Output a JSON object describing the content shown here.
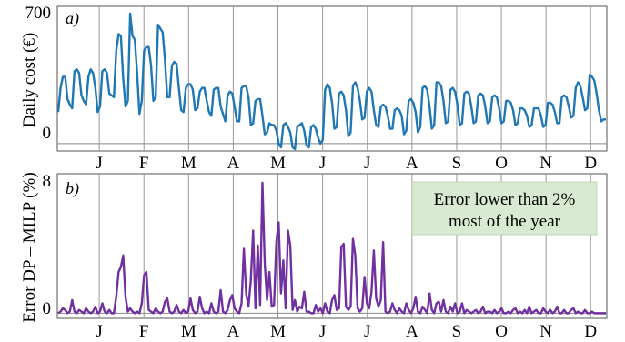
{
  "chart_data": [
    {
      "type": "line",
      "panel_tag": "a)",
      "ylabel": "Daily cost (€)",
      "xlabel": "",
      "ylim": [
        -30,
        700
      ],
      "y_ticks": [
        0,
        700
      ],
      "months": [
        "J",
        "F",
        "M",
        "A",
        "M",
        "J",
        "J",
        "A",
        "S",
        "O",
        "N",
        "D"
      ],
      "grid": "vertical month lines",
      "line_color": "#1f77b4",
      "series": [
        {
          "values": [
            170,
            300,
            360,
            360,
            240,
            210,
            190,
            390,
            400,
            380,
            260,
            230,
            210,
            360,
            400,
            380,
            300,
            170,
            200,
            390,
            400,
            380,
            270,
            260,
            250,
            500,
            590,
            580,
            350,
            200,
            230,
            700,
            580,
            560,
            380,
            160,
            230,
            500,
            520,
            520,
            420,
            230,
            250,
            640,
            620,
            600,
            450,
            250,
            250,
            420,
            440,
            430,
            300,
            180,
            170,
            300,
            320,
            320,
            290,
            180,
            190,
            280,
            300,
            300,
            230,
            170,
            150,
            290,
            300,
            300,
            200,
            160,
            120,
            260,
            280,
            270,
            200,
            120,
            120,
            300,
            310,
            310,
            250,
            100,
            110,
            230,
            240,
            240,
            150,
            50,
            60,
            110,
            100,
            100,
            70,
            0,
            -20,
            100,
            110,
            90,
            60,
            -20,
            -30,
            90,
            100,
            110,
            70,
            -10,
            -20,
            90,
            100,
            80,
            30,
            0,
            20,
            290,
            320,
            300,
            220,
            80,
            90,
            270,
            280,
            260,
            180,
            40,
            60,
            310,
            330,
            300,
            230,
            130,
            140,
            280,
            300,
            280,
            180,
            100,
            90,
            200,
            210,
            200,
            150,
            80,
            80,
            180,
            190,
            180,
            150,
            50,
            70,
            230,
            240,
            220,
            170,
            60,
            90,
            300,
            310,
            290,
            200,
            80,
            100,
            330,
            330,
            310,
            230,
            110,
            120,
            290,
            300,
            280,
            210,
            100,
            110,
            270,
            280,
            270,
            200,
            110,
            120,
            260,
            270,
            260,
            200,
            110,
            120,
            250,
            260,
            250,
            190,
            110,
            120,
            230,
            230,
            220,
            180,
            100,
            110,
            190,
            190,
            180,
            150,
            90,
            100,
            190,
            190,
            190,
            150,
            90,
            100,
            220,
            220,
            210,
            170,
            110,
            110,
            250,
            260,
            250,
            200,
            140,
            150,
            300,
            330,
            310,
            250,
            180,
            190,
            370,
            360,
            340,
            270,
            180,
            120,
            130,
            130
          ]
        }
      ]
    },
    {
      "type": "line",
      "panel_tag": "b)",
      "ylabel": "Error DP – MILP (%)",
      "xlabel": "",
      "ylim": [
        -0.2,
        8
      ],
      "y_ticks": [
        0,
        8
      ],
      "months": [
        "J",
        "F",
        "M",
        "A",
        "M",
        "J",
        "J",
        "A",
        "S",
        "O",
        "N",
        "D"
      ],
      "grid": "vertical month lines",
      "line_color": "#7030a0",
      "annotation": {
        "lines": [
          "Error lower than 2%",
          "most of the year"
        ],
        "background": "#d9ead3",
        "position": "top-right"
      },
      "series": [
        {
          "values": [
            0.0,
            0.1,
            0.3,
            0.2,
            0.0,
            0.1,
            0.8,
            0.1,
            0.0,
            0.2,
            0.1,
            0.0,
            0.3,
            0.1,
            0.0,
            0.1,
            0.4,
            0.0,
            0.1,
            0.6,
            0.1,
            0.0,
            0.2,
            0.0,
            0.0,
            1.0,
            2.5,
            2.8,
            3.5,
            1.0,
            0.1,
            0.3,
            0.1,
            0.0,
            0.1,
            0.0,
            0.6,
            2.3,
            2.5,
            0.2,
            0.1,
            0.0,
            0.3,
            0.1,
            0.0,
            0.1,
            0.7,
            0.9,
            0.1,
            0.0,
            0.1,
            0.5,
            0.1,
            0.0,
            0.2,
            0.0,
            0.1,
            0.9,
            0.2,
            0.0,
            0.1,
            1.0,
            0.3,
            0.0,
            0.1,
            0.0,
            0.6,
            0.1,
            0.0,
            0.1,
            1.4,
            0.1,
            0.0,
            0.2,
            0.8,
            1.1,
            0.3,
            0.1,
            0.0,
            0.6,
            3.9,
            1.2,
            0.4,
            2.0,
            5.0,
            0.3,
            4.1,
            0.5,
            7.9,
            3.0,
            0.8,
            2.5,
            0.4,
            0.5,
            4.3,
            5.5,
            1.2,
            3.2,
            0.3,
            5.0,
            4.1,
            0.2,
            0.8,
            0.1,
            0.4,
            0.3,
            1.3,
            0.1,
            0.1,
            0.0,
            0.0,
            0.5,
            0.1,
            0.3,
            0.0,
            0.6,
            0.1,
            0.0,
            0.8,
            1.1,
            0.2,
            0.3,
            4.0,
            4.2,
            0.4,
            0.2,
            0.4,
            4.5,
            3.5,
            0.3,
            0.1,
            0.3,
            2.2,
            0.6,
            0.3,
            1.3,
            3.8,
            0.9,
            0.4,
            0.8,
            4.3,
            0.1,
            0.0,
            0.1,
            0.6,
            0.2,
            0.0,
            0.3,
            0.1,
            0.0,
            0.6,
            0.2,
            0.0,
            0.3,
            1.0,
            0.1,
            0.0,
            0.4,
            0.2,
            0.0,
            1.2,
            0.2,
            0.0,
            0.6,
            0.7,
            0.1,
            0.8,
            0.1,
            0.0,
            0.4,
            0.1,
            0.6,
            0.0,
            0.1,
            0.6,
            0.0,
            0.2,
            0.1,
            0.0,
            0.1,
            0.2,
            0.0,
            0.1,
            0.4,
            0.0,
            0.1,
            0.1,
            0.0,
            0.2,
            0.0,
            0.1,
            0.3,
            0.0,
            0.0,
            0.1,
            0.0,
            0.2,
            0.3,
            0.0,
            0.1,
            0.0,
            0.2,
            0.0,
            0.4,
            0.0,
            0.1,
            0.2,
            0.0,
            0.0,
            0.3,
            0.1,
            0.0,
            0.2,
            0.0,
            0.1,
            0.4,
            0.0,
            0.0,
            0.2,
            0.0,
            0.0,
            0.2,
            0.3,
            0.0,
            0.1,
            0.0,
            0.0,
            0.2,
            0.0,
            0.0,
            0.1,
            0.0,
            0.0,
            0.0,
            0.0,
            0.0,
            0.0
          ]
        }
      ]
    }
  ]
}
